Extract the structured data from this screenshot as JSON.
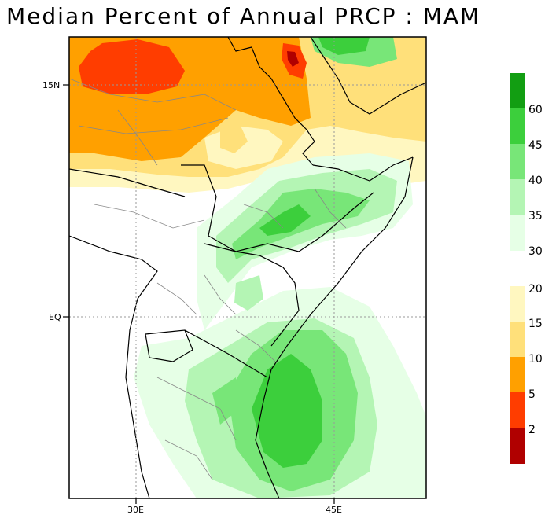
{
  "title": "Median Percent of Annual PRCP   :   MAM",
  "axes": {
    "lat_labels": [
      "15N",
      "EQ"
    ],
    "lon_labels": [
      "30E",
      "45E"
    ]
  },
  "colorbar": {
    "upper_labels": [
      "60",
      "45",
      "40",
      "35",
      "30"
    ],
    "lower_labels": [
      "20",
      "15",
      "10",
      "5",
      "2"
    ],
    "upper_colors": [
      "#129e12",
      "#3ccf3c",
      "#78e678",
      "#b4f5b4",
      "#e6ffe6"
    ],
    "lower_colors": [
      "#fff7c0",
      "#ffe07a",
      "#ffa000",
      "#ff3d00",
      "#b00000"
    ]
  },
  "colors": {
    "dark_green": "#129e12",
    "green": "#3ccf3c",
    "mid_green": "#78e678",
    "light_green": "#b4f5b4",
    "pale_green": "#e6ffe6",
    "pale_yellow": "#fff7c0",
    "yellow": "#ffe07a",
    "orange": "#ffa000",
    "red_orange": "#ff3d00",
    "dark_red": "#b00000"
  }
}
